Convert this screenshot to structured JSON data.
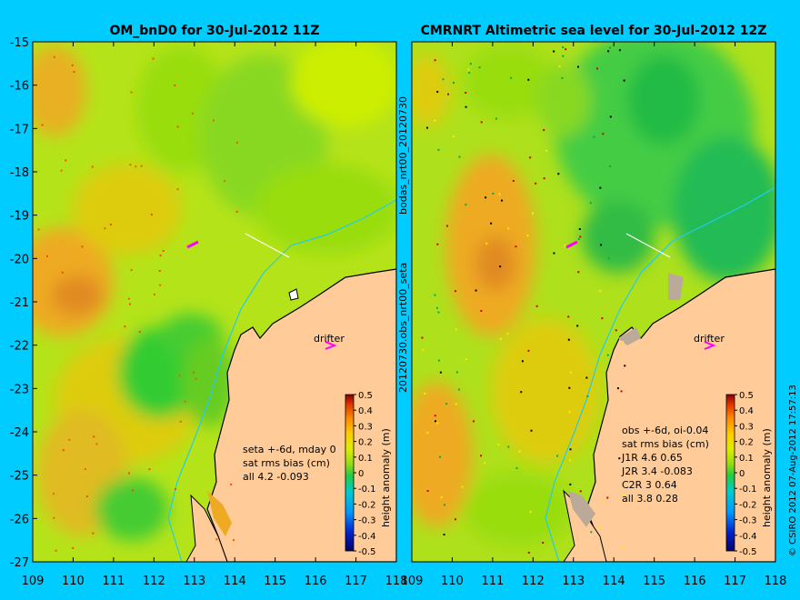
{
  "chart_data": [
    {
      "type": "heatmap",
      "title": "OM_bnD0 for 30-Jul-2012 11Z",
      "x_ticks": [
        109,
        110,
        111,
        112,
        113,
        114,
        115,
        116,
        117,
        118
      ],
      "y_ticks": [
        -15,
        -16,
        -17,
        -18,
        -19,
        -20,
        -21,
        -22,
        -23,
        -24,
        -25,
        -26,
        -27
      ],
      "xlim": [
        109,
        118
      ],
      "ylim": [
        -27,
        -15
      ],
      "side_label": "bodas_nrt00_20120730",
      "drifter_label": "drifter",
      "stats_lines": [
        "seta +-6d, mday 0",
        "sat rms bias (cm)",
        "all 4.2 -0.093"
      ],
      "colorbar": {
        "label": "height anomaly (m)",
        "ticks": [
          "0.5",
          "0.4",
          "0.3",
          "0.2",
          "0.1",
          "0",
          "-0.1",
          "-0.2",
          "-0.3",
          "-0.4",
          "-0.5"
        ],
        "range": [
          -0.5,
          0.5
        ]
      }
    },
    {
      "type": "heatmap",
      "title": "CMRNRT Altimetric sea level  for 30-Jul-2012 12Z",
      "x_ticks": [
        109,
        110,
        111,
        112,
        113,
        114,
        115,
        116,
        117,
        118
      ],
      "xlim": [
        109,
        118
      ],
      "ylim": [
        -27,
        -15
      ],
      "side_label": "20120730.obs_nrt00_seta",
      "drifter_label": "drifter",
      "stats_lines": [
        "obs +-6d, oi-0.04",
        "sat rms bias (cm)",
        "J1R   4.6  0.65",
        "J2R   3.4 -0.083",
        "C2R    3  0.64",
        "all 3.8 0.28"
      ],
      "colorbar": {
        "label": "height anomaly (m)",
        "ticks": [
          "0.5",
          "0.4",
          "0.3",
          "0.2",
          "0.1",
          "0",
          "-0.1",
          "-0.2",
          "-0.3",
          "-0.4",
          "-0.5"
        ],
        "range": [
          -0.5,
          0.5
        ]
      },
      "credit": "© CSIRO 2012  07-Aug-2012 17:57:13"
    }
  ],
  "colors": {
    "background": "#00ccff",
    "land": "#ffcc99",
    "coast": "#000000",
    "field_green": "#99dd11",
    "field_yellow": "#ccee00",
    "field_orange": "#eeaa22",
    "field_darkgreen": "#33cc33",
    "drifter": "#ff00ff",
    "isobath": "#22ccee"
  }
}
